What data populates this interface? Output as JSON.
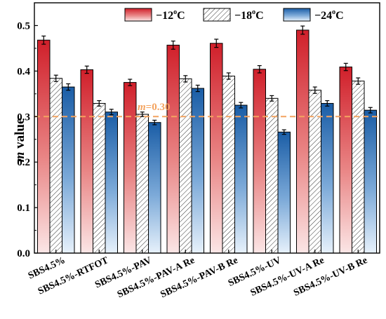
{
  "chart_data": {
    "type": "bar",
    "ylabel": "m value",
    "ylabel_italic_part": "m",
    "ylabel_rest": " value",
    "ylim": [
      0,
      0.55
    ],
    "yticks": [
      "0.0",
      "0.1",
      "0.2",
      "0.3",
      "0.4",
      "0.5"
    ],
    "ytick_values": [
      0,
      0.1,
      0.2,
      0.3,
      0.4,
      0.5
    ],
    "categories": [
      "SBS4.5%",
      "SBS4.5%-RTFOT",
      "SBS4.5%-PAV",
      "SBS4.5%-PAV-A Re",
      "SBS4.5%-PAV-B Re",
      "SBS4.5%-UV",
      "SBS4.5%-UV-A Re",
      "SBS4.5%-UV-B Re"
    ],
    "series": [
      {
        "name": "−12°C",
        "name_prefix": "−12",
        "name_sup": "o",
        "name_suffix": "C",
        "color": "#d62728",
        "values": [
          0.468,
          0.403,
          0.375,
          0.457,
          0.461,
          0.404,
          0.49,
          0.409
        ],
        "errors": [
          0.009,
          0.008,
          0.007,
          0.009,
          0.009,
          0.008,
          0.009,
          0.008
        ]
      },
      {
        "name": "−18°C",
        "name_prefix": "−18",
        "name_sup": "o",
        "name_suffix": "C",
        "color": "#ffffff",
        "values": [
          0.384,
          0.329,
          0.305,
          0.383,
          0.389,
          0.34,
          0.358,
          0.378
        ],
        "errors": [
          0.007,
          0.006,
          0.005,
          0.007,
          0.007,
          0.006,
          0.007,
          0.007
        ]
      },
      {
        "name": "−24°C",
        "name_prefix": "−24",
        "name_sup": "o",
        "name_suffix": "C",
        "color": "#1f5fa8",
        "values": [
          0.365,
          0.31,
          0.287,
          0.362,
          0.325,
          0.266,
          0.329,
          0.314
        ],
        "errors": [
          0.007,
          0.006,
          0.005,
          0.007,
          0.006,
          0.005,
          0.006,
          0.006
        ]
      }
    ],
    "reference_line": {
      "value": 0.3,
      "label": "m=0.30",
      "label_italic_part": "m",
      "label_rest": "=0.30",
      "color": "#f4a460"
    },
    "legend_position": "top-center",
    "grid": false
  }
}
